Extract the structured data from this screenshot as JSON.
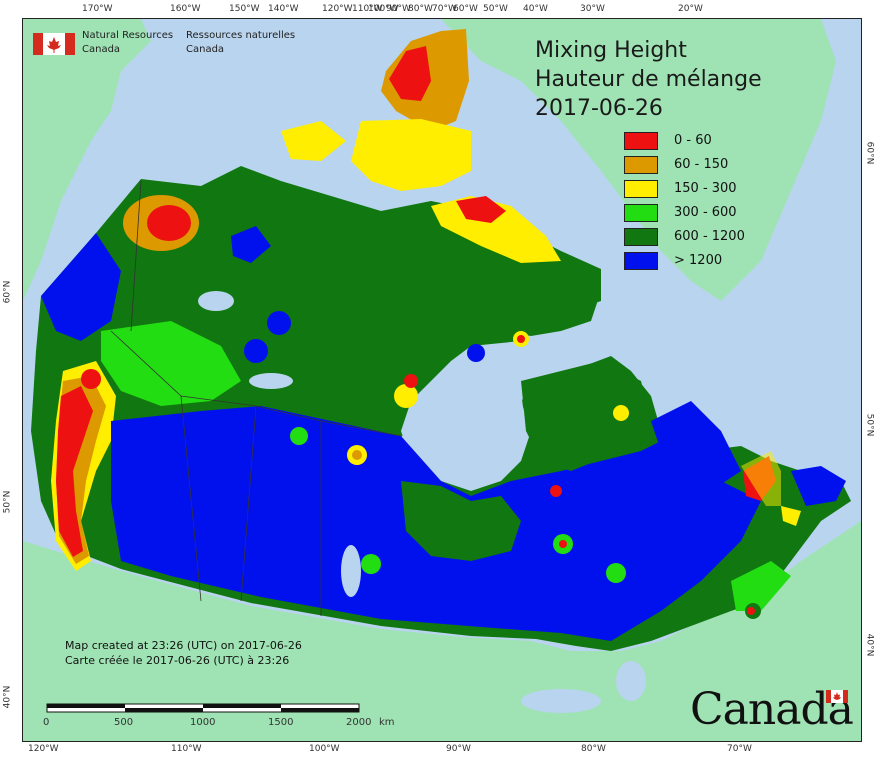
{
  "header": {
    "agency_en_line1": "Natural Resources",
    "agency_en_line2": "Canada",
    "agency_fr_line1": "Ressources naturelles",
    "agency_fr_line2": "Canada"
  },
  "title": {
    "line1": "Mixing Height",
    "line2": "Hauteur de mélange",
    "line3": "2017-06-26"
  },
  "legend": [
    {
      "label": "0 - 60",
      "color": "#ee1111"
    },
    {
      "label": "60 - 150",
      "color": "#dd9900"
    },
    {
      "label": "150 - 300",
      "color": "#ffee00"
    },
    {
      "label": "300 - 600",
      "color": "#22dd11"
    },
    {
      "label": "600 - 1200",
      "color": "#117711"
    },
    {
      "label": "> 1200",
      "color": "#0011ee"
    }
  ],
  "colors": {
    "ocean": "#b9d4ee",
    "foreign_land": "#9fe3b4",
    "water": "#b9d4ee"
  },
  "ticks": {
    "top": [
      "170°W",
      "160°W",
      "150°W",
      "140°W",
      "120°W",
      "110°W",
      "100°W",
      "90°W",
      "80°W",
      "70°W",
      "60°W",
      "50°W",
      "40°W",
      "30°W",
      "20°W"
    ],
    "bottom": [
      "120°W",
      "110°W",
      "100°W",
      "90°W",
      "80°W",
      "70°W"
    ],
    "left": [
      "60°N",
      "50°N",
      "40°N"
    ],
    "right": [
      "60°N",
      "50°N",
      "40°N"
    ]
  },
  "footer": {
    "created_en": "Map created at 23:26 (UTC) on 2017-06-26",
    "created_fr": "Carte créée le 2017-06-26 (UTC) à 23:26"
  },
  "scale": {
    "labels": [
      "0",
      "500",
      "1000",
      "1500",
      "2000"
    ],
    "unit": "km"
  },
  "wordmark": "Canada"
}
